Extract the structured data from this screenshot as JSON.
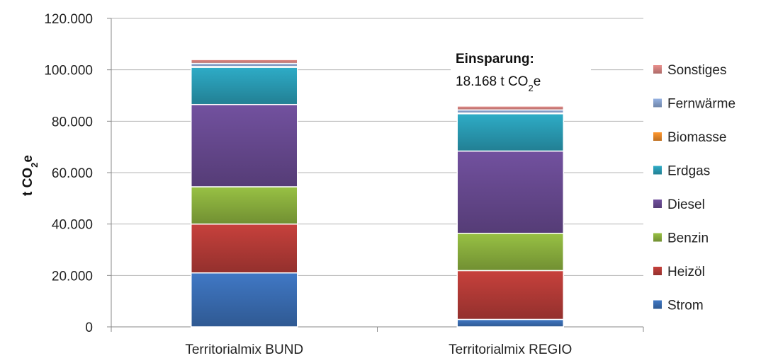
{
  "chart_data": {
    "type": "bar",
    "stacked": true,
    "categories": [
      "Territorialmix BUND",
      "Territorialmix REGIO"
    ],
    "series": [
      {
        "name": "Strom",
        "color": "#3b6fb6",
        "values": [
          21000,
          2900
        ]
      },
      {
        "name": "Heizöl",
        "color": "#b83c38",
        "values": [
          19000,
          19000
        ]
      },
      {
        "name": "Benzin",
        "color": "#8db33f",
        "values": [
          14500,
          14500
        ]
      },
      {
        "name": "Diesel",
        "color": "#6a4b93",
        "values": [
          32000,
          32000
        ]
      },
      {
        "name": "Erdgas",
        "color": "#2b9fb8",
        "values": [
          14500,
          14500
        ]
      },
      {
        "name": "Biomasse",
        "color": "#ef8c2b",
        "values": [
          300,
          300
        ]
      },
      {
        "name": "Fernwärme",
        "color": "#8aa5d2",
        "values": [
          1200,
          1200
        ]
      },
      {
        "name": "Sonstiges",
        "color": "#d98582",
        "values": [
          1500,
          1500
        ]
      }
    ],
    "ylabel": {
      "prefix": "t CO",
      "sub": "2",
      "suffix": "e"
    },
    "ylim": [
      0,
      120000
    ],
    "yticks": [
      0,
      20000,
      40000,
      60000,
      80000,
      100000,
      120000
    ],
    "ytick_labels": [
      "0",
      "20.000",
      "40.000",
      "60.000",
      "80.000",
      "100.000",
      "120.000"
    ],
    "grid": true,
    "legend_position": "right",
    "annotation": {
      "line1": "Einsparung:",
      "line2_prefix": "18.168 t CO",
      "line2_sub": "2",
      "line2_suffix": "e"
    }
  }
}
